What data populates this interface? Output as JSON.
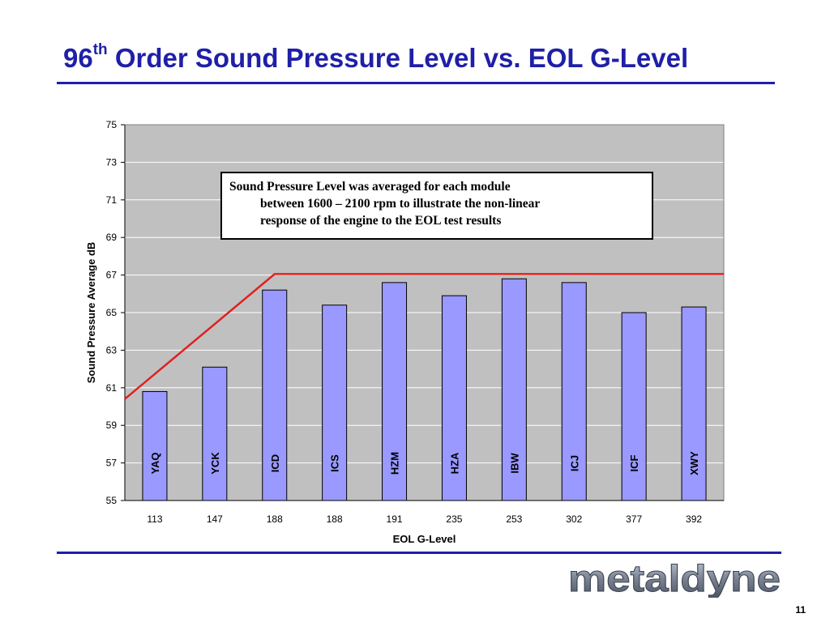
{
  "slide": {
    "title_main": "96",
    "title_sup": "th",
    "title_rest": " Order Sound Pressure Level vs. EOL G-Level",
    "title_color": "#1f1fa8",
    "annotation": {
      "line1": "Sound Pressure Level was averaged for each module",
      "line2": "between 1600 – 2100 rpm to illustrate the non-linear",
      "line3": "response of the engine to the EOL test results"
    },
    "logo_text": "metaldyne",
    "page_number": "11"
  },
  "chart_data": {
    "type": "bar",
    "categories": [
      "113",
      "147",
      "188",
      "188",
      "191",
      "235",
      "253",
      "302",
      "377",
      "392"
    ],
    "bar_labels": [
      "YAQ",
      "YCK",
      "ICD",
      "ICS",
      "HZM",
      "HZA",
      "IBW",
      "ICJ",
      "ICF",
      "XWY"
    ],
    "values": [
      60.8,
      62.1,
      66.2,
      65.4,
      66.6,
      65.9,
      66.8,
      66.6,
      65.0,
      65.3
    ],
    "xlabel": "EOL G-Level",
    "ylabel": "Sound Pressure Average dB",
    "ylim": [
      55,
      75
    ],
    "yticks": [
      55,
      57,
      59,
      61,
      63,
      65,
      67,
      69,
      71,
      73,
      75
    ],
    "grid": true,
    "trend_line": {
      "color": "#e02020",
      "points": [
        [
          0,
          60.4
        ],
        [
          2.5,
          67.05
        ],
        [
          10,
          67.05
        ]
      ]
    },
    "colors": {
      "bar_fill": "#9999ff",
      "plot_background": "#c0c0c0",
      "gridline": "#ffffff"
    }
  }
}
